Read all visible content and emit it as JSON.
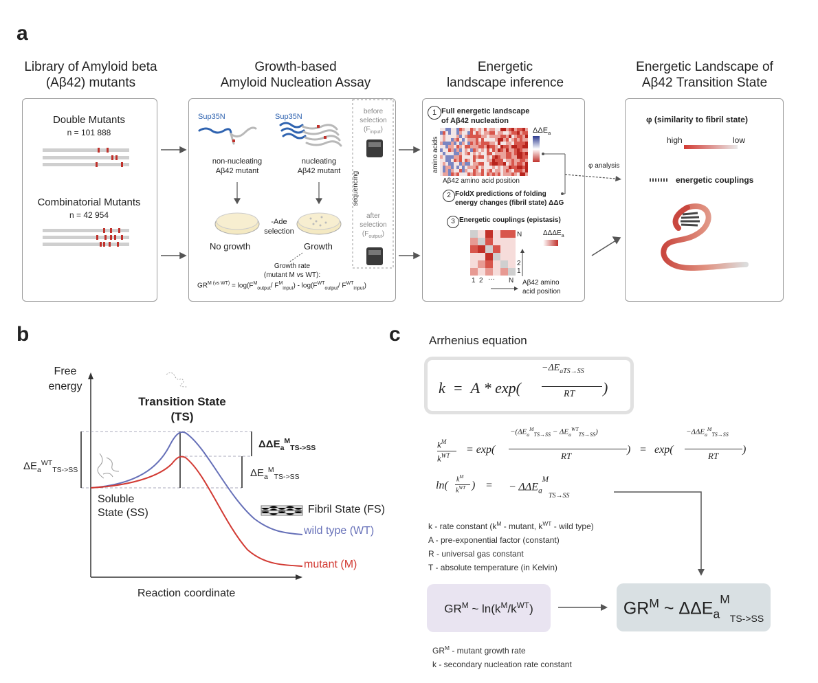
{
  "panels": {
    "a": "a",
    "b": "b",
    "c": "c"
  },
  "col1": {
    "title_l1": "Library of Amyloid beta",
    "title_l2": "(Aβ42) mutants",
    "double_title": "Double Mutants",
    "double_n": "n = 101 888",
    "combi_title": "Combinatorial Mutants",
    "combi_n": "n = 42 954"
  },
  "col2": {
    "title_l1": "Growth-based",
    "title_l2": "Amyloid Nucleation Assay",
    "sup35_left": "Sup35N",
    "sup35_right": "Sup35N",
    "nonnuc_l1": "non-nucleating",
    "nonnuc_l2": "Aβ42 mutant",
    "nuc_l1": "nucleating",
    "nuc_l2": "Aβ42 mutant",
    "ade_l1": "-Ade",
    "ade_l2": "selection",
    "no_growth": "No growth",
    "growth": "Growth",
    "before_l1": "before",
    "before_l2": "selection",
    "before_l3": "(F",
    "before_sub": "input",
    "sequencing": "sequencing",
    "after_l1": "after",
    "after_l2": "selection",
    "after_l3": "(F",
    "after_sub": "output",
    "gr_l1": "Growth rate",
    "gr_l2": "(mutant M vs WT):",
    "gr_formula": "GR",
    "gr_sup": "M (vs WT)",
    "gr_rest1": " = log(F",
    "gr_M": "M",
    "gr_out": "output",
    "gr_slash": "/ F",
    "gr_in": "input",
    "gr_mid": ") - log(F",
    "gr_WT": "WT",
    "gr_end": ")"
  },
  "col3": {
    "title_l1": "Energetic",
    "title_l2": "landscape inference",
    "step1_num": "1",
    "step1_l1": "Full energetic landscape",
    "step1_l2": "of Aβ42 nucleation",
    "ylabel": "amino acids",
    "xlabel": "Aβ42 amino acid position",
    "dde_label": "ΔΔE",
    "dde_sub": "a",
    "step2_num": "2",
    "step2_l1": "FoldX predictions of folding",
    "step2_l2": "energy changes (fibril state) ΔΔG",
    "step3_num": "3",
    "step3_l1": "Energetic couplings (epistasis)",
    "ddde_label": "ΔΔΔE",
    "ddde_sub": "a",
    "tick_1": "1",
    "tick_2": "2",
    "tick_dots": "···",
    "tick_N": "N",
    "pos_l1": "Aβ42 amino",
    "pos_l2": "acid position",
    "phi_analysis": "φ analysis"
  },
  "col4": {
    "title_l1": "Energetic Landscape of",
    "title_l2": "Aβ42 Transition State",
    "phi_title": "φ (similarity to fibril state)",
    "high": "high",
    "low": "low",
    "couplings": "energetic couplings"
  },
  "panel_b": {
    "yaxis_l1": "Free",
    "yaxis_l2": "energy",
    "ts_l1": "Transition State",
    "ts_l2": "(TS)",
    "ss_l1": "Soluble",
    "ss_l2": "State (SS)",
    "fs": "Fibril State (FS)",
    "wt": "wild type (WT)",
    "mut": "mutant (M)",
    "xaxis": "Reaction coordinate",
    "de_wt": "ΔE",
    "de_wt_sub": "a",
    "de_wt_sup": "WT",
    "de_wt_tail": "TS->SS",
    "dde": "ΔΔE",
    "dde_sub": "a",
    "dde_sup": "M",
    "dde_tail": "TS->SS",
    "de_m": "ΔE",
    "de_m_sub": "a",
    "de_m_sup": "M",
    "de_m_tail": "TS->SS"
  },
  "panel_c": {
    "arrhenius": "Arrhenius equation",
    "eq1_k": "k",
    "eq1_eq": "=",
    "eq1_A": "A",
    "eq1_star": "*",
    "eq1_exp": "exp(",
    "eq1_num": "−ΔE",
    "eq1_num_sub": "a",
    "eq1_num_tail": "TS→SS",
    "eq1_den": "RT",
    "eq1_close": ")",
    "ratio_num": "k",
    "ratio_num_sup": "M",
    "ratio_den": "k",
    "ratio_den_sup": "WT",
    "eq2_exp": "= exp(",
    "eq2_num": "−(ΔE",
    "eq2_num_mid": " − ΔE",
    "eq2_num_close": ")",
    "eq2_den": "RT",
    "eq2_close": ")",
    "eq2_eq2": "=",
    "eq2_exp2": "exp(",
    "eq2_num2": "−ΔΔE",
    "eq2_den2": "RT",
    "eq2_close2": ")",
    "sub_a": "a",
    "sup_M": "M",
    "sup_WT": "WT",
    "tail": "TS→SS",
    "ln_open": "ln(",
    "ln_close": ")",
    "ln_eq": "=",
    "ln_rhs": "− ΔΔE",
    "legend_k": "k - rate constant (k",
    "legend_k_M": "M",
    "legend_k_mid": " - mutant, k",
    "legend_k_WT": "WT",
    "legend_k_end": " - wild type)",
    "legend_A": "A - pre-exponential factor (constant)",
    "legend_R": "R - universal gas constant",
    "legend_T": "T - absolute temperature (in Kelvin)",
    "gr_left": "GR",
    "gr_left_sup": "M",
    "gr_left_rest": " ~ ln(k",
    "gr_left_M": "M",
    "gr_left_slash": "/k",
    "gr_left_WT": "WT",
    "gr_left_close": ")",
    "gr_right": "GR",
    "gr_right_sup": "M",
    "gr_right_rest": " ~ ΔΔE",
    "gr_right_sub": "a",
    "gr_right_M": "M",
    "gr_right_tail": "TS->SS",
    "foot1": "GR",
    "foot1_sup": "M",
    "foot1_rest": " - mutant growth rate",
    "foot2": "k - secondary nucleation rate constant"
  },
  "colors": {
    "red": "#d23a33",
    "blue": "#6670b8",
    "grey": "#c8c8c8",
    "box_fill_left": "#e9e4f1",
    "box_fill_right": "#d9e0e3"
  }
}
